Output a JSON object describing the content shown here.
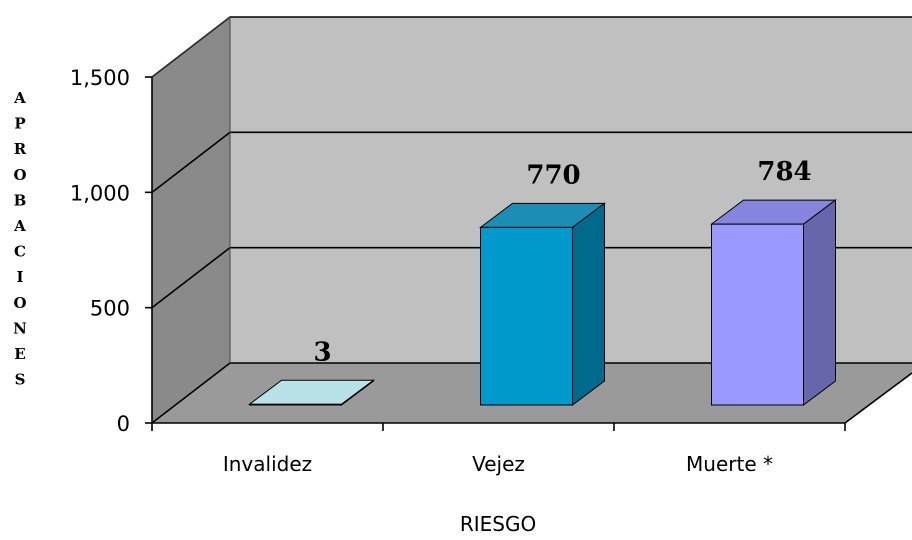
{
  "chart_data": {
    "type": "bar",
    "style": "3d",
    "categories": [
      "Invalidez",
      "Vejez",
      "Muerte *"
    ],
    "values": [
      3,
      770,
      784
    ],
    "value_labels": [
      "3",
      "770",
      "784"
    ],
    "xlabel": "RIESGO",
    "ylabel": "APROBACIONES",
    "ylim": [
      0,
      1500
    ],
    "y_ticks": [
      0,
      500,
      1000,
      1500
    ],
    "y_tick_labels": [
      "0",
      "500",
      "1,000",
      "1,500"
    ],
    "grid": true,
    "legend": "none",
    "bar_colors": [
      {
        "front": "#a9d6de",
        "top": "#b9e2e8",
        "side": "#7fb3bd"
      },
      {
        "front": "#0099cc",
        "top": "#1a8fb3",
        "side": "#006a8c"
      },
      {
        "front": "#9999ff",
        "top": "#8585dd",
        "side": "#6666aa"
      }
    ],
    "wall_color": "#c0c0c0",
    "side_wall_color": "#8a8a8a",
    "floor_color": "#9a9a9a"
  }
}
